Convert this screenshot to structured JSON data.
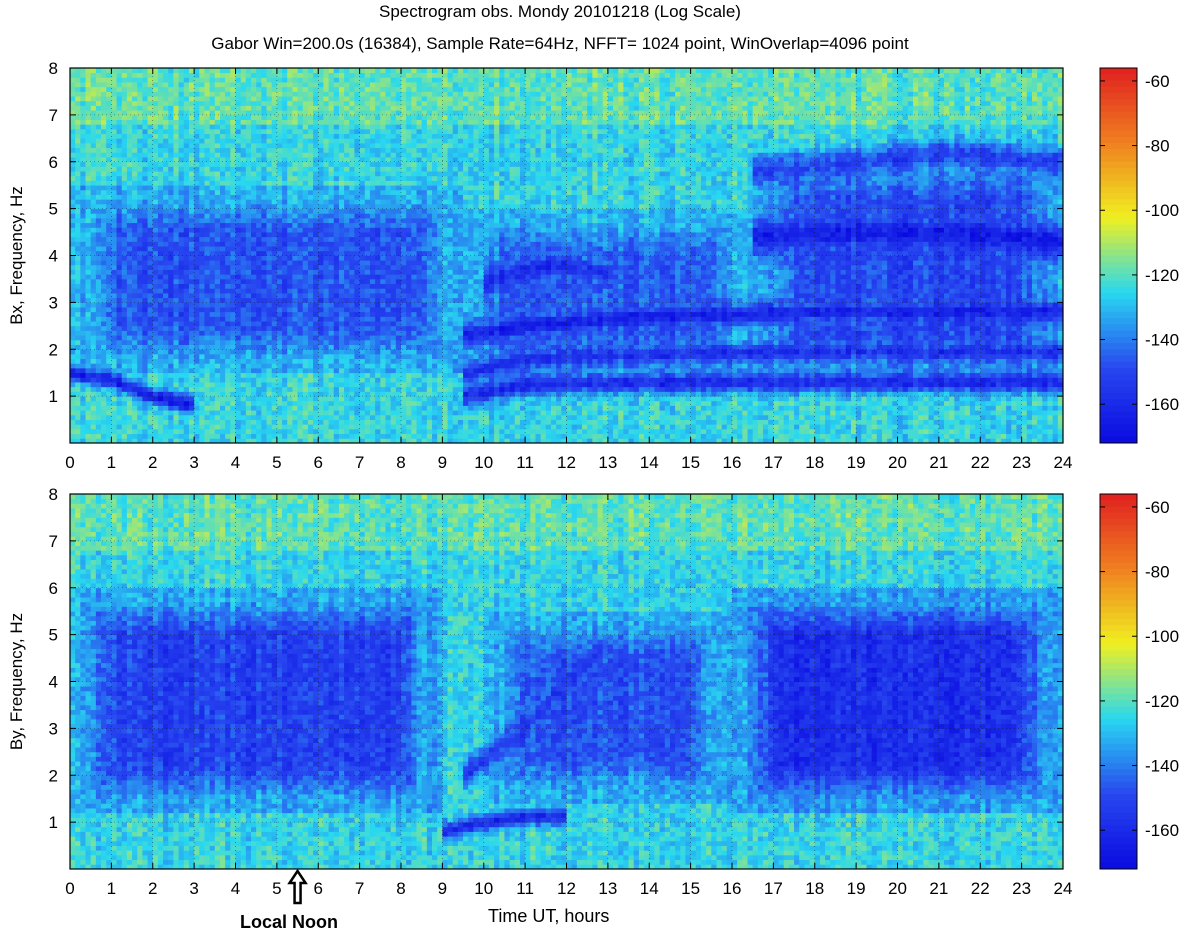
{
  "header": {
    "title": "Spectrogram   obs. Mondy  20101218 (Log Scale)",
    "subtitle": "Gabor Win=200.0s (16384), Sample Rate=64Hz, NFFT= 1024 point, WinOverlap=4096 point"
  },
  "xlabel": "Time UT, hours",
  "annotation": {
    "label": "Local Noon",
    "x": 5.5
  },
  "colorbar": {
    "ticks": [
      "-60",
      "-80",
      "-100",
      "-120",
      "-140",
      "-160"
    ],
    "range": [
      -172,
      -56
    ],
    "colors": [
      "#0a0ae0",
      "#2848f0",
      "#28d8f0",
      "#f0f020",
      "#f08020",
      "#e02020"
    ]
  },
  "chart_data": [
    {
      "type": "heatmap",
      "ylabel": "Bx, Frequency, Hz",
      "xlim": [
        0,
        24
      ],
      "ylim": [
        0,
        8
      ],
      "xticks": [
        "0",
        "1",
        "2",
        "3",
        "4",
        "5",
        "6",
        "7",
        "8",
        "9",
        "10",
        "11",
        "12",
        "13",
        "14",
        "15",
        "16",
        "17",
        "18",
        "19",
        "20",
        "21",
        "22",
        "23",
        "24"
      ],
      "yticks": [
        "1",
        "2",
        "3",
        "4",
        "5",
        "6",
        "7",
        "8"
      ],
      "grid": true,
      "background_level": -125,
      "features": [
        {
          "name": "band",
          "x": [
            0,
            1,
            2,
            3
          ],
          "y": [
            1.5,
            1.35,
            1.0,
            0.8
          ],
          "level": -165,
          "width": 0.25
        },
        {
          "name": "band",
          "x": [
            9.5,
            11,
            14,
            16,
            24
          ],
          "y": [
            1.0,
            1.25,
            1.3,
            1.3,
            1.3
          ],
          "level": -160,
          "width": 0.3
        },
        {
          "name": "band",
          "x": [
            9.5,
            11,
            14,
            18,
            24
          ],
          "y": [
            1.5,
            1.8,
            1.9,
            1.95,
            1.95
          ],
          "level": -158,
          "width": 0.3
        },
        {
          "name": "band",
          "x": [
            9.5,
            11,
            14,
            16,
            18,
            24
          ],
          "y": [
            2.3,
            2.5,
            2.7,
            2.75,
            2.8,
            2.8
          ],
          "level": -163,
          "width": 0.35
        },
        {
          "name": "band",
          "x": [
            10,
            11,
            12,
            13
          ],
          "y": [
            3.4,
            3.7,
            3.8,
            3.6
          ],
          "level": -158,
          "width": 0.45
        },
        {
          "name": "band",
          "x": [
            16.5,
            18,
            20,
            22,
            24
          ],
          "y": [
            4.4,
            4.45,
            4.5,
            4.45,
            4.3
          ],
          "level": -165,
          "width": 0.55
        },
        {
          "name": "band",
          "x": [
            16.5,
            19,
            21,
            24
          ],
          "y": [
            5.8,
            6.0,
            6.2,
            6.0
          ],
          "level": -152,
          "width": 0.4
        },
        {
          "name": "blob",
          "x0": 0,
          "x1": 9.5,
          "y0": 1.5,
          "y1": 5.5,
          "level": -148
        },
        {
          "name": "blob",
          "x0": 9.5,
          "x1": 16.5,
          "y0": 1.2,
          "y1": 5.0,
          "level": -146
        },
        {
          "name": "blob",
          "x0": 16.5,
          "x1": 24,
          "y0": 1.3,
          "y1": 6.2,
          "level": -150
        }
      ]
    },
    {
      "type": "heatmap",
      "ylabel": "By, Frequency, Hz",
      "xlim": [
        0,
        24
      ],
      "ylim": [
        0,
        8
      ],
      "xticks": [
        "0",
        "1",
        "2",
        "3",
        "4",
        "5",
        "6",
        "7",
        "8",
        "9",
        "10",
        "11",
        "12",
        "13",
        "14",
        "15",
        "16",
        "17",
        "18",
        "19",
        "20",
        "21",
        "22",
        "23",
        "24"
      ],
      "yticks": [
        "1",
        "2",
        "3",
        "4",
        "5",
        "6",
        "7",
        "8"
      ],
      "grid": true,
      "background_level": -125,
      "features": [
        {
          "name": "band",
          "x": [
            9,
            10,
            11,
            12
          ],
          "y": [
            0.8,
            1.0,
            1.1,
            1.15
          ],
          "level": -160,
          "width": 0.25
        },
        {
          "name": "band",
          "x": [
            9.5,
            11,
            12,
            13
          ],
          "y": [
            2.0,
            3.0,
            4.0,
            4.8
          ],
          "level": -155,
          "width": 0.4
        },
        {
          "name": "blob",
          "x0": 0,
          "x1": 9.0,
          "y0": 1.2,
          "y1": 6.0,
          "level": -152
        },
        {
          "name": "blob",
          "x0": 10,
          "x1": 16,
          "y0": 1.4,
          "y1": 5.5,
          "level": -148
        },
        {
          "name": "blob",
          "x0": 16,
          "x1": 24,
          "y0": 1.2,
          "y1": 6.0,
          "level": -158
        }
      ]
    }
  ]
}
